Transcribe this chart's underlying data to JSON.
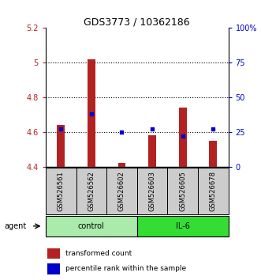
{
  "title": "GDS3773 / 10362186",
  "samples": [
    "GSM526561",
    "GSM526562",
    "GSM526602",
    "GSM526603",
    "GSM526605",
    "GSM526678"
  ],
  "groups": [
    "control",
    "control",
    "control",
    "IL-6",
    "IL-6",
    "IL-6"
  ],
  "transformed_counts": [
    4.64,
    5.02,
    4.42,
    4.58,
    4.74,
    4.55
  ],
  "percentile_ranks": [
    27,
    38,
    25,
    27,
    22,
    27
  ],
  "ylim_left": [
    4.4,
    5.2
  ],
  "ylim_right": [
    0,
    100
  ],
  "yticks_left": [
    4.4,
    4.6,
    4.8,
    5.0,
    5.2
  ],
  "ytick_labels_left": [
    "4.4",
    "4.6",
    "4.8",
    "5",
    "5.2"
  ],
  "yticks_right": [
    0,
    25,
    50,
    75,
    100
  ],
  "ytick_labels_right": [
    "0",
    "25",
    "50",
    "75",
    "100%"
  ],
  "bar_color": "#b22222",
  "dot_color": "#0000cc",
  "sample_box_color": "#cccccc",
  "control_bg": "#aaeaaa",
  "il6_bg": "#33dd33",
  "control_label": "control",
  "il6_label": "IL-6",
  "agent_label": "agent",
  "legend_bar_label": "transformed count",
  "legend_dot_label": "percentile rank within the sample",
  "title_fontsize": 9,
  "tick_fontsize": 7,
  "sample_fontsize": 6,
  "group_fontsize": 7,
  "legend_fontsize": 6.5,
  "bar_width": 0.25
}
